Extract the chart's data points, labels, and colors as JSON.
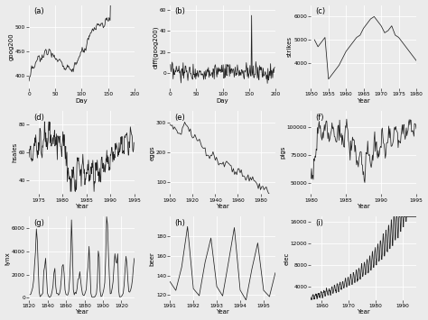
{
  "bg_color": "#ebebeb",
  "panel_bg": "#ebebeb",
  "line_color": "#222222",
  "grid_color": "#ffffff",
  "panels": [
    {
      "label": "(a)",
      "ylabel": "goog200",
      "xlabel": "Day",
      "xlim": [
        0,
        200
      ],
      "ylim": [
        375,
        545
      ],
      "xticks": [
        0,
        50,
        100,
        150,
        200
      ],
      "yticks": [
        400,
        450,
        500
      ]
    },
    {
      "label": "(b)",
      "ylabel": "diff(goog200)",
      "xlabel": "Day",
      "xlim": [
        0,
        200
      ],
      "ylim": [
        -15,
        65
      ],
      "xticks": [
        0,
        50,
        100,
        150,
        200
      ],
      "yticks": [
        0,
        20,
        40,
        60
      ]
    },
    {
      "label": "(c)",
      "ylabel": "strikes",
      "xlabel": "Year",
      "xlim": [
        1951,
        1980
      ],
      "ylim": [
        2900,
        6500
      ],
      "xticks": [
        1950,
        1955,
        1960,
        1965,
        1970,
        1975,
        1980
      ],
      "yticks": [
        4000,
        5000,
        6000
      ]
    },
    {
      "label": "(d)",
      "ylabel": "hsales",
      "xlabel": "Year",
      "xlim": [
        1973,
        1995
      ],
      "ylim": [
        30,
        90
      ],
      "xticks": [
        1975,
        1980,
        1985,
        1990,
        1995
      ],
      "yticks": [
        40,
        60,
        80
      ]
    },
    {
      "label": "(e)",
      "ylabel": "eggs",
      "xlabel": "Year",
      "xlim": [
        1900,
        1993
      ],
      "ylim": [
        60,
        340
      ],
      "xticks": [
        1900,
        1920,
        1940,
        1960,
        1980
      ],
      "yticks": [
        100,
        200,
        300
      ]
    },
    {
      "label": "(f)",
      "ylabel": "pigs",
      "xlabel": "Year",
      "xlim": [
        1980,
        1995
      ],
      "ylim": [
        40000,
        115000
      ],
      "xticks": [
        1980,
        1985,
        1990,
        1995
      ],
      "yticks": [
        50000,
        75000,
        100000
      ]
    },
    {
      "label": "(g)",
      "ylabel": "lynx",
      "xlabel": "Year",
      "xlim": [
        1821,
        1934
      ],
      "ylim": [
        -200,
        7000
      ],
      "xticks": [
        1820,
        1840,
        1860,
        1880,
        1900,
        1920
      ],
      "yticks": [
        0,
        2000,
        4000,
        6000
      ]
    },
    {
      "label": "(h)",
      "ylabel": "beer",
      "xlabel": "Year",
      "xlim": [
        1991,
        1995.5
      ],
      "ylim": [
        115,
        200
      ],
      "xticks": [
        1991,
        1992,
        1993,
        1994,
        1995
      ],
      "yticks": [
        120,
        140,
        160,
        180
      ]
    },
    {
      "label": "(i)",
      "ylabel": "elec",
      "xlabel": "Year",
      "xlim": [
        1956,
        1995
      ],
      "ylim": [
        1500,
        17000
      ],
      "xticks": [
        1960,
        1970,
        1980,
        1990
      ],
      "yticks": [
        4000,
        8000,
        12000,
        16000
      ]
    }
  ]
}
